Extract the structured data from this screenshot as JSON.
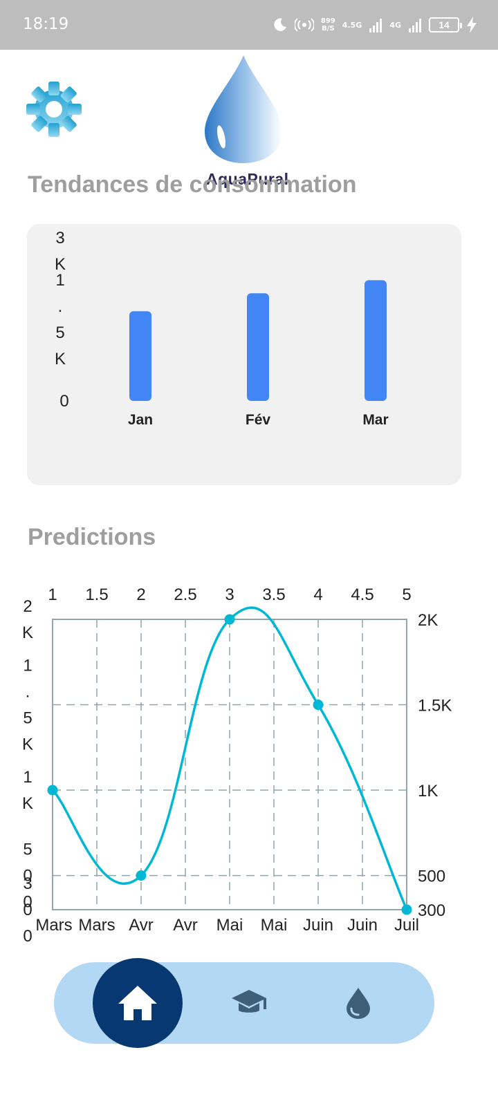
{
  "status_bar": {
    "time": "18:19",
    "net_speed_value": "899",
    "net_speed_unit": "B/S",
    "network_1": "4.5G",
    "network_2": "4G",
    "battery_level": "14"
  },
  "header": {
    "settings_icon": "gear-icon",
    "logo_text": "AquaPural"
  },
  "trends": {
    "title": "Tendances de consommation"
  },
  "predictions": {
    "title": "Predictions"
  },
  "colors": {
    "bar": "#4285f4",
    "line": "#00b8d4",
    "nav_bg": "#b3d8f3",
    "nav_active": "#073871",
    "nav_icon": "#3f5f78",
    "title_gray": "#9e9e9e"
  },
  "chart_data": [
    {
      "type": "bar",
      "categories": [
        "Jan",
        "Fév",
        "Mar"
      ],
      "values": [
        1650,
        1980,
        2220
      ],
      "ylim": [
        0,
        3000
      ],
      "y_ticks": [
        {
          "value": 0,
          "label": "0"
        },
        {
          "value": 1500,
          "label": "1.5K"
        },
        {
          "value": 3000,
          "label": "3K"
        }
      ],
      "grid": false,
      "title": "",
      "xlabel": "",
      "ylabel": ""
    },
    {
      "type": "line",
      "x": [
        1,
        2,
        3,
        4,
        5
      ],
      "values": [
        1000,
        500,
        2000,
        1500,
        300
      ],
      "xlim": [
        1,
        5
      ],
      "ylim": [
        300,
        2000
      ],
      "x_top_ticks": [
        "1",
        "1.5",
        "2",
        "2.5",
        "3",
        "3.5",
        "4",
        "4.5",
        "5"
      ],
      "x_bottom_ticks": [
        "Mars",
        "Mars",
        "Avr",
        "Avr",
        "Mai",
        "Mai",
        "Juin",
        "Juin",
        "Juil"
      ],
      "y_left_ticks": [
        {
          "value": 2000,
          "label": "2K"
        },
        {
          "value": 1500,
          "label": "1.5K"
        },
        {
          "value": 1000,
          "label": "1K"
        },
        {
          "value": 500,
          "label": "500"
        },
        {
          "value": 300,
          "label": "300"
        }
      ],
      "y_right_ticks": [
        {
          "value": 2000,
          "label": "2K"
        },
        {
          "value": 1500,
          "label": "1.5K"
        },
        {
          "value": 1000,
          "label": "1K"
        },
        {
          "value": 500,
          "label": "500"
        },
        {
          "value": 300,
          "label": "300"
        }
      ],
      "grid": true,
      "title": "",
      "xlabel": "",
      "ylabel": ""
    }
  ],
  "bottom_nav": {
    "items": [
      {
        "icon": "home-icon",
        "active": true
      },
      {
        "icon": "graduation-cap-icon",
        "active": false
      },
      {
        "icon": "water-drop-icon",
        "active": false
      }
    ]
  }
}
